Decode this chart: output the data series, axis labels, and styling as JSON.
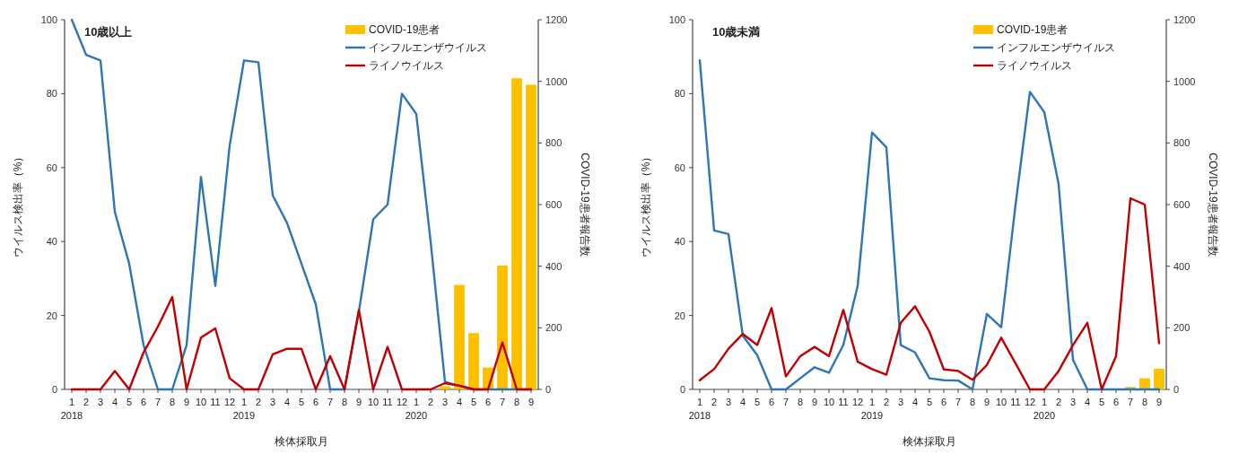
{
  "chart_data": [
    {
      "type": "line",
      "title": "10歳以上",
      "xlabel": "検体採取月",
      "ylabel": "ウイルス検出率（%）",
      "y2label": "COVID-19患者報告数",
      "categories": [
        "1\n2018",
        "2",
        "3",
        "4",
        "5",
        "6",
        "7",
        "8",
        "9",
        "10",
        "11",
        "12",
        "1\n2019",
        "2",
        "3",
        "4",
        "5",
        "6",
        "7",
        "8",
        "9",
        "10",
        "11",
        "12",
        "1\n2020",
        "2",
        "3",
        "4",
        "5",
        "6",
        "7",
        "8",
        "9"
      ],
      "series": [
        {
          "name": "COVID-19患者",
          "type": "bar",
          "axis": "y2",
          "color": "#ffc000",
          "values": [
            null,
            null,
            null,
            null,
            null,
            null,
            null,
            null,
            null,
            null,
            null,
            null,
            null,
            null,
            null,
            null,
            null,
            null,
            null,
            null,
            null,
            null,
            null,
            null,
            null,
            null,
            10,
            339,
            183,
            71,
            402,
            1010,
            989
          ]
        },
        {
          "name": "インフルエンザウイルス",
          "color": "#2e75b6",
          "values": [
            100,
            90.5,
            89,
            48,
            34,
            12,
            0,
            0,
            12,
            57.5,
            28,
            66,
            89,
            88.5,
            52.5,
            45,
            34,
            23,
            0,
            0,
            21,
            46,
            50,
            80,
            74.5,
            40,
            2,
            1,
            0,
            0,
            0,
            0,
            0
          ]
        },
        {
          "name": "ライノウイルス",
          "color": "#c00000",
          "values": [
            0,
            0,
            0,
            5,
            0,
            10,
            17,
            25,
            0,
            14,
            16.5,
            3,
            0,
            0,
            9.5,
            11,
            11,
            0,
            9,
            0,
            21.5,
            0,
            11.5,
            0,
            0,
            0,
            1.7,
            1,
            0,
            0,
            12.7,
            0,
            0
          ]
        }
      ],
      "ylim": [
        0,
        100
      ],
      "yticks": [
        0,
        20,
        40,
        60,
        80,
        100
      ],
      "y2lim": [
        0,
        1200
      ],
      "y2ticks": [
        0,
        200,
        400,
        600,
        800,
        1000,
        1200
      ],
      "legend": "top right",
      "grid": false
    },
    {
      "type": "line",
      "title": "10歳未満",
      "xlabel": "検体採取月",
      "ylabel": "ウイルス検出率（%）",
      "y2label": "COVID-19患者報告数",
      "categories": [
        "1\n2018",
        "2",
        "3",
        "4",
        "5",
        "6",
        "7",
        "8",
        "9",
        "10",
        "11",
        "12",
        "1\n2019",
        "2",
        "3",
        "4",
        "5",
        "6",
        "7",
        "8",
        "9",
        "10",
        "11",
        "12",
        "1\n2020",
        "2",
        "3",
        "4",
        "5",
        "6",
        "7",
        "8",
        "9"
      ],
      "series": [
        {
          "name": "COVID-19患者",
          "type": "bar",
          "axis": "y2",
          "color": "#ffc000",
          "values": [
            null,
            null,
            null,
            null,
            null,
            null,
            null,
            null,
            null,
            null,
            null,
            null,
            null,
            null,
            null,
            null,
            null,
            null,
            null,
            null,
            null,
            null,
            null,
            null,
            null,
            null,
            null,
            null,
            null,
            null,
            8,
            36,
            67
          ]
        },
        {
          "name": "インフルエンザウイルス",
          "color": "#2e75b6",
          "values": [
            89,
            43,
            42,
            14.5,
            9.3,
            0,
            0,
            3,
            6,
            4.5,
            12,
            28,
            69.5,
            65.5,
            12,
            10,
            3,
            2.5,
            2.4,
            0,
            20.4,
            16.8,
            50,
            80.5,
            75,
            55.5,
            8,
            0,
            0,
            0,
            0,
            0,
            0
          ]
        },
        {
          "name": "ライノウイルス",
          "color": "#c00000",
          "values": [
            2.5,
            5.5,
            11,
            15,
            12,
            22,
            3.5,
            9,
            11.5,
            9,
            21.5,
            7.5,
            5.5,
            4,
            18,
            22.5,
            15.6,
            5.4,
            5,
            2.6,
            6.6,
            14,
            7,
            0,
            0,
            5,
            12,
            18,
            0,
            9,
            51.7,
            50,
            12.5
          ]
        }
      ],
      "ylim": [
        0,
        100
      ],
      "yticks": [
        0,
        20,
        40,
        60,
        80,
        100
      ],
      "y2lim": [
        0,
        1200
      ],
      "y2ticks": [
        0,
        200,
        400,
        600,
        800,
        1000,
        1200
      ],
      "legend": "top right",
      "grid": false
    }
  ]
}
